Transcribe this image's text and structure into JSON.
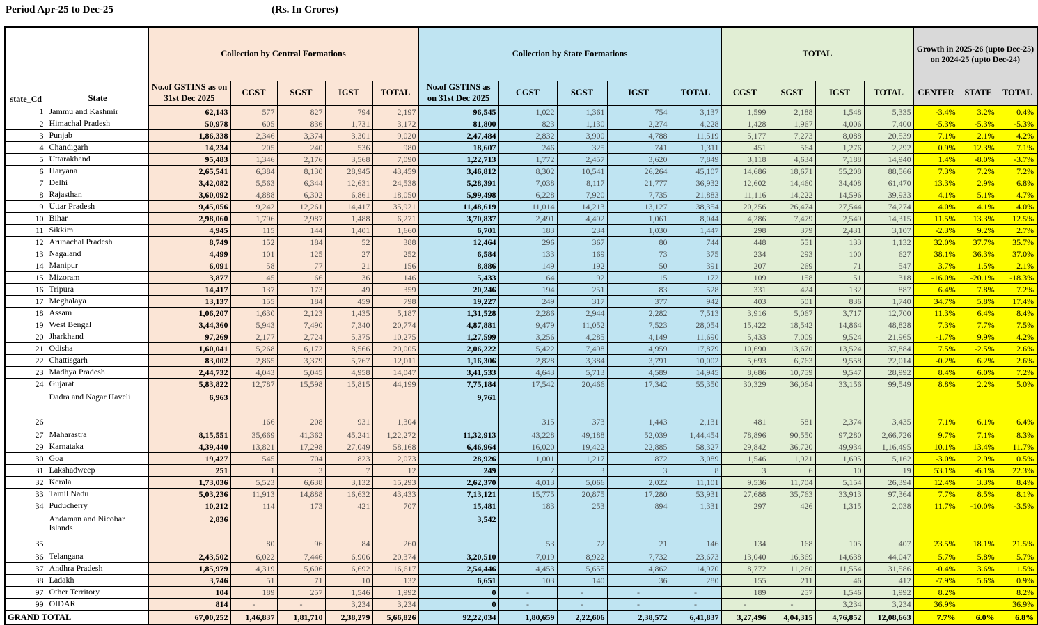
{
  "title": {
    "period": "Period Apr-25 to Dec-25",
    "unit": "(Rs. In Crores)"
  },
  "colors": {
    "central": "#fbe5d6",
    "state": "#bfe4f2",
    "total": "#e1eed4",
    "growth_header": "#d9d9d9",
    "growth_cell": "#ffff00"
  },
  "header": {
    "state_cd": "state_Cd",
    "state": "State",
    "central_group": "Collection by Central Formations",
    "state_group": "Collection by State Formations",
    "total_group": "TOTAL",
    "growth_group": "Growth in 2025-26 (upto Dec-25)\non 2024-25 (upto Dec-24)",
    "gstins": "No.of GSTINS as on 31st Dec 2025",
    "cgst": "CGST",
    "sgst": "SGST",
    "igst": "IGST",
    "total": "TOTAL",
    "center": "CENTER",
    "state_col": "STATE",
    "total_col": "TOTAL"
  },
  "rows": [
    {
      "cd": "1",
      "state": "Jammu and Kashmir",
      "central": [
        "62,143",
        "577",
        "827",
        "794",
        "2,197"
      ],
      "stateF": [
        "96,545",
        "1,022",
        "1,361",
        "754",
        "3,137"
      ],
      "total": [
        "1,599",
        "2,188",
        "1,548",
        "5,335"
      ],
      "growth": [
        "-3.4%",
        "3.2%",
        "0.4%"
      ]
    },
    {
      "cd": "2",
      "state": "Himachal Pradesh",
      "central": [
        "50,978",
        "605",
        "836",
        "1,731",
        "3,172"
      ],
      "stateF": [
        "81,800",
        "823",
        "1,130",
        "2,274",
        "4,228"
      ],
      "total": [
        "1,428",
        "1,967",
        "4,006",
        "7,400"
      ],
      "growth": [
        "-5.3%",
        "-5.3%",
        "-5.3%"
      ]
    },
    {
      "cd": "3",
      "state": "Punjab",
      "central": [
        "1,86,338",
        "2,346",
        "3,374",
        "3,301",
        "9,020"
      ],
      "stateF": [
        "2,47,484",
        "2,832",
        "3,900",
        "4,788",
        "11,519"
      ],
      "total": [
        "5,177",
        "7,273",
        "8,088",
        "20,539"
      ],
      "growth": [
        "7.1%",
        "2.1%",
        "4.2%"
      ]
    },
    {
      "cd": "4",
      "state": "Chandigarh",
      "central": [
        "14,234",
        "205",
        "240",
        "536",
        "980"
      ],
      "stateF": [
        "18,607",
        "246",
        "325",
        "741",
        "1,311"
      ],
      "total": [
        "451",
        "564",
        "1,276",
        "2,292"
      ],
      "growth": [
        "0.9%",
        "12.3%",
        "7.1%"
      ]
    },
    {
      "cd": "5",
      "state": "Uttarakhand",
      "central": [
        "95,483",
        "1,346",
        "2,176",
        "3,568",
        "7,090"
      ],
      "stateF": [
        "1,22,713",
        "1,772",
        "2,457",
        "3,620",
        "7,849"
      ],
      "total": [
        "3,118",
        "4,634",
        "7,188",
        "14,940"
      ],
      "growth": [
        "1.4%",
        "-8.0%",
        "-3.7%"
      ]
    },
    {
      "cd": "6",
      "state": "Haryana",
      "central": [
        "2,65,541",
        "6,384",
        "8,130",
        "28,945",
        "43,459"
      ],
      "stateF": [
        "3,46,812",
        "8,302",
        "10,541",
        "26,264",
        "45,107"
      ],
      "total": [
        "14,686",
        "18,671",
        "55,208",
        "88,566"
      ],
      "growth": [
        "7.3%",
        "7.2%",
        "7.2%"
      ]
    },
    {
      "cd": "7",
      "state": "Delhi",
      "central": [
        "3,42,082",
        "5,563",
        "6,344",
        "12,631",
        "24,538"
      ],
      "stateF": [
        "5,28,391",
        "7,038",
        "8,117",
        "21,777",
        "36,932"
      ],
      "total": [
        "12,602",
        "14,460",
        "34,408",
        "61,470"
      ],
      "growth": [
        "13.3%",
        "2.9%",
        "6.8%"
      ]
    },
    {
      "cd": "8",
      "state": "Rajasthan",
      "central": [
        "3,60,092",
        "4,888",
        "6,302",
        "6,861",
        "18,050"
      ],
      "stateF": [
        "5,99,498",
        "6,228",
        "7,920",
        "7,735",
        "21,883"
      ],
      "total": [
        "11,116",
        "14,222",
        "14,596",
        "39,933"
      ],
      "growth": [
        "4.1%",
        "5.1%",
        "4.7%"
      ]
    },
    {
      "cd": "9",
      "state": "Uttar Pradesh",
      "central": [
        "9,45,056",
        "9,242",
        "12,261",
        "14,417",
        "35,921"
      ],
      "stateF": [
        "11,48,619",
        "11,014",
        "14,213",
        "13,127",
        "38,354"
      ],
      "total": [
        "20,256",
        "26,474",
        "27,544",
        "74,274"
      ],
      "growth": [
        "4.0%",
        "4.1%",
        "4.0%"
      ]
    },
    {
      "cd": "10",
      "state": "Bihar",
      "central": [
        "2,98,060",
        "1,796",
        "2,987",
        "1,488",
        "6,271"
      ],
      "stateF": [
        "3,70,837",
        "2,491",
        "4,492",
        "1,061",
        "8,044"
      ],
      "total": [
        "4,286",
        "7,479",
        "2,549",
        "14,315"
      ],
      "growth": [
        "11.5%",
        "13.3%",
        "12.5%"
      ]
    },
    {
      "cd": "11",
      "state": "Sikkim",
      "central": [
        "4,945",
        "115",
        "144",
        "1,401",
        "1,660"
      ],
      "stateF": [
        "6,701",
        "183",
        "234",
        "1,030",
        "1,447"
      ],
      "total": [
        "298",
        "379",
        "2,431",
        "3,107"
      ],
      "growth": [
        "-2.3%",
        "9.2%",
        "2.7%"
      ]
    },
    {
      "cd": "12",
      "state": "Arunachal Pradesh",
      "central": [
        "8,749",
        "152",
        "184",
        "52",
        "388"
      ],
      "stateF": [
        "12,464",
        "296",
        "367",
        "80",
        "744"
      ],
      "total": [
        "448",
        "551",
        "133",
        "1,132"
      ],
      "growth": [
        "32.0%",
        "37.7%",
        "35.7%"
      ]
    },
    {
      "cd": "13",
      "state": "Nagaland",
      "central": [
        "4,499",
        "101",
        "125",
        "27",
        "252"
      ],
      "stateF": [
        "6,584",
        "133",
        "169",
        "73",
        "375"
      ],
      "total": [
        "234",
        "293",
        "100",
        "627"
      ],
      "growth": [
        "38.1%",
        "36.3%",
        "37.0%"
      ]
    },
    {
      "cd": "14",
      "state": "Manipur",
      "central": [
        "6,091",
        "58",
        "77",
        "21",
        "156"
      ],
      "stateF": [
        "8,886",
        "149",
        "192",
        "50",
        "391"
      ],
      "total": [
        "207",
        "269",
        "71",
        "547"
      ],
      "growth": [
        "3.7%",
        "1.5%",
        "2.1%"
      ]
    },
    {
      "cd": "15",
      "state": "Mizoram",
      "central": [
        "3,877",
        "45",
        "66",
        "36",
        "146"
      ],
      "stateF": [
        "5,433",
        "64",
        "92",
        "15",
        "172"
      ],
      "total": [
        "109",
        "158",
        "51",
        "318"
      ],
      "growth": [
        "-16.0%",
        "-20.1%",
        "-18.3%"
      ]
    },
    {
      "cd": "16",
      "state": "Tripura",
      "central": [
        "14,417",
        "137",
        "173",
        "49",
        "359"
      ],
      "stateF": [
        "20,246",
        "194",
        "251",
        "83",
        "528"
      ],
      "total": [
        "331",
        "424",
        "132",
        "887"
      ],
      "growth": [
        "6.4%",
        "7.8%",
        "7.2%"
      ]
    },
    {
      "cd": "17",
      "state": "Meghalaya",
      "central": [
        "13,137",
        "155",
        "184",
        "459",
        "798"
      ],
      "stateF": [
        "19,227",
        "249",
        "317",
        "377",
        "942"
      ],
      "total": [
        "403",
        "501",
        "836",
        "1,740"
      ],
      "growth": [
        "34.7%",
        "5.8%",
        "17.4%"
      ]
    },
    {
      "cd": "18",
      "state": "Assam",
      "central": [
        "1,06,207",
        "1,630",
        "2,123",
        "1,435",
        "5,187"
      ],
      "stateF": [
        "1,31,528",
        "2,286",
        "2,944",
        "2,282",
        "7,513"
      ],
      "total": [
        "3,916",
        "5,067",
        "3,717",
        "12,700"
      ],
      "growth": [
        "11.3%",
        "6.4%",
        "8.4%"
      ]
    },
    {
      "cd": "19",
      "state": "West Bengal",
      "central": [
        "3,44,360",
        "5,943",
        "7,490",
        "7,340",
        "20,774"
      ],
      "stateF": [
        "4,87,881",
        "9,479",
        "11,052",
        "7,523",
        "28,054"
      ],
      "total": [
        "15,422",
        "18,542",
        "14,864",
        "48,828"
      ],
      "growth": [
        "7.3%",
        "7.7%",
        "7.5%"
      ]
    },
    {
      "cd": "20",
      "state": "Jharkhand",
      "central": [
        "97,269",
        "2,177",
        "2,724",
        "5,375",
        "10,275"
      ],
      "stateF": [
        "1,27,599",
        "3,256",
        "4,285",
        "4,149",
        "11,690"
      ],
      "total": [
        "5,433",
        "7,009",
        "9,524",
        "21,965"
      ],
      "growth": [
        "-1.7%",
        "9.9%",
        "4.2%"
      ]
    },
    {
      "cd": "21",
      "state": "Odisha",
      "central": [
        "1,60,041",
        "5,268",
        "6,172",
        "8,566",
        "20,005"
      ],
      "stateF": [
        "2,06,222",
        "5,422",
        "7,498",
        "4,959",
        "17,879"
      ],
      "total": [
        "10,690",
        "13,670",
        "13,524",
        "37,884"
      ],
      "growth": [
        "7.5%",
        "-2.5%",
        "2.6%"
      ]
    },
    {
      "cd": "22",
      "state": "Chattisgarh",
      "central": [
        "83,002",
        "2,865",
        "3,379",
        "5,767",
        "12,011"
      ],
      "stateF": [
        "1,16,306",
        "2,828",
        "3,384",
        "3,791",
        "10,002"
      ],
      "total": [
        "5,693",
        "6,763",
        "9,558",
        "22,014"
      ],
      "growth": [
        "-0.2%",
        "6.2%",
        "2.6%"
      ]
    },
    {
      "cd": "23",
      "state": "Madhya Pradesh",
      "central": [
        "2,44,732",
        "4,043",
        "5,045",
        "4,958",
        "14,047"
      ],
      "stateF": [
        "3,41,533",
        "4,643",
        "5,713",
        "4,589",
        "14,945"
      ],
      "total": [
        "8,686",
        "10,759",
        "9,547",
        "28,992"
      ],
      "growth": [
        "8.4%",
        "6.0%",
        "7.2%"
      ]
    },
    {
      "cd": "24",
      "state": "Gujarat",
      "central": [
        "5,83,822",
        "12,787",
        "15,598",
        "15,815",
        "44,199"
      ],
      "stateF": [
        "7,75,184",
        "17,542",
        "20,466",
        "17,342",
        "55,350"
      ],
      "total": [
        "30,329",
        "36,064",
        "33,156",
        "99,549"
      ],
      "growth": [
        "8.8%",
        "2.2%",
        "5.0%"
      ]
    },
    {
      "cd": "26",
      "state": "Dadra and Nagar Haveli",
      "tall": true,
      "central": [
        "6,963",
        "166",
        "208",
        "931",
        "1,304"
      ],
      "stateF": [
        "9,761",
        "315",
        "373",
        "1,443",
        "2,131"
      ],
      "total": [
        "481",
        "581",
        "2,374",
        "3,435"
      ],
      "growth": [
        "7.1%",
        "6.1%",
        "6.4%"
      ]
    },
    {
      "cd": "27",
      "state": "Maharastra",
      "central": [
        "8,15,551",
        "35,669",
        "41,362",
        "45,241",
        "1,22,272"
      ],
      "stateF": [
        "11,32,913",
        "43,228",
        "49,188",
        "52,039",
        "1,44,454"
      ],
      "total": [
        "78,896",
        "90,550",
        "97,280",
        "2,66,726"
      ],
      "growth": [
        "9.7%",
        "7.1%",
        "8.3%"
      ]
    },
    {
      "cd": "29",
      "state": "Karnataka",
      "central": [
        "4,39,440",
        "13,821",
        "17,298",
        "27,049",
        "58,168"
      ],
      "stateF": [
        "6,46,964",
        "16,020",
        "19,422",
        "22,885",
        "58,327"
      ],
      "total": [
        "29,842",
        "36,720",
        "49,934",
        "1,16,495"
      ],
      "growth": [
        "10.1%",
        "13.4%",
        "11.7%"
      ]
    },
    {
      "cd": "30",
      "state": "Goa",
      "central": [
        "19,427",
        "545",
        "704",
        "823",
        "2,073"
      ],
      "stateF": [
        "28,926",
        "1,001",
        "1,217",
        "872",
        "3,089"
      ],
      "total": [
        "1,546",
        "1,921",
        "1,695",
        "5,162"
      ],
      "growth": [
        "-3.0%",
        "2.9%",
        "0.5%"
      ]
    },
    {
      "cd": "31",
      "state": "Lakshadweep",
      "central": [
        "251",
        "1",
        "3",
        "7",
        "12"
      ],
      "stateF": [
        "249",
        "2",
        "3",
        "3",
        "8"
      ],
      "total": [
        "3",
        "6",
        "10",
        "19"
      ],
      "growth": [
        "53.1%",
        "-6.1%",
        "22.3%"
      ]
    },
    {
      "cd": "32",
      "state": "Kerala",
      "central": [
        "1,73,036",
        "5,523",
        "6,638",
        "3,132",
        "15,293"
      ],
      "stateF": [
        "2,62,370",
        "4,013",
        "5,066",
        "2,022",
        "11,101"
      ],
      "total": [
        "9,536",
        "11,704",
        "5,154",
        "26,394"
      ],
      "growth": [
        "12.4%",
        "3.3%",
        "8.4%"
      ]
    },
    {
      "cd": "33",
      "state": "Tamil Nadu",
      "central": [
        "5,03,236",
        "11,913",
        "14,888",
        "16,632",
        "43,433"
      ],
      "stateF": [
        "7,13,121",
        "15,775",
        "20,875",
        "17,280",
        "53,931"
      ],
      "total": [
        "27,688",
        "35,763",
        "33,913",
        "97,364"
      ],
      "growth": [
        "7.7%",
        "8.5%",
        "8.1%"
      ]
    },
    {
      "cd": "34",
      "state": "Puducherry",
      "central": [
        "10,212",
        "114",
        "173",
        "421",
        "707"
      ],
      "stateF": [
        "15,481",
        "183",
        "253",
        "894",
        "1,331"
      ],
      "total": [
        "297",
        "426",
        "1,315",
        "2,038"
      ],
      "growth": [
        "11.7%",
        "-10.0%",
        "-3.5%"
      ]
    },
    {
      "cd": "35",
      "state": "Andaman and Nicobar Islands",
      "tall": true,
      "central": [
        "2,836",
        "80",
        "96",
        "84",
        "260"
      ],
      "stateF": [
        "3,542",
        "53",
        "72",
        "21",
        "146"
      ],
      "total": [
        "134",
        "168",
        "105",
        "407"
      ],
      "growth": [
        "23.5%",
        "18.1%",
        "21.5%"
      ]
    },
    {
      "cd": "36",
      "state": "Telangana",
      "central": [
        "2,43,502",
        "6,022",
        "7,446",
        "6,906",
        "20,374"
      ],
      "stateF": [
        "3,20,510",
        "7,019",
        "8,922",
        "7,732",
        "23,673"
      ],
      "total": [
        "13,040",
        "16,369",
        "14,638",
        "44,047"
      ],
      "growth": [
        "5.7%",
        "5.8%",
        "5.7%"
      ]
    },
    {
      "cd": "37",
      "state": "Andhra Pradesh",
      "central": [
        "1,85,979",
        "4,319",
        "5,606",
        "6,692",
        "16,617"
      ],
      "stateF": [
        "2,54,446",
        "4,453",
        "5,655",
        "4,862",
        "14,970"
      ],
      "total": [
        "8,772",
        "11,260",
        "11,554",
        "31,586"
      ],
      "growth": [
        "-0.4%",
        "3.6%",
        "1.5%"
      ]
    },
    {
      "cd": "38",
      "state": "Ladakh",
      "central": [
        "3,746",
        "51",
        "71",
        "10",
        "132"
      ],
      "stateF": [
        "6,651",
        "103",
        "140",
        "36",
        "280"
      ],
      "total": [
        "155",
        "211",
        "46",
        "412"
      ],
      "growth": [
        "-7.9%",
        "5.6%",
        "0.9%"
      ]
    },
    {
      "cd": "97",
      "state": "Other Territory",
      "central": [
        "104",
        "189",
        "257",
        "1,546",
        "1,992"
      ],
      "stateF": [
        "0",
        "-",
        "-",
        "-",
        "-"
      ],
      "total": [
        "189",
        "257",
        "1,546",
        "1,992"
      ],
      "growth": [
        "8.2%",
        "",
        "8.2%"
      ]
    },
    {
      "cd": "99",
      "state": "OIDAR",
      "central": [
        "814",
        "-",
        "-",
        "3,234",
        "3,234"
      ],
      "stateF": [
        "0",
        "-",
        "-",
        "-",
        "-"
      ],
      "total": [
        "-",
        "-",
        "3,234",
        "3,234"
      ],
      "growth": [
        "36.9%",
        "",
        "36.9%"
      ]
    }
  ],
  "grand_total": {
    "label": "GRAND TOTAL",
    "central": [
      "67,00,252",
      "1,46,837",
      "1,81,710",
      "2,38,279",
      "5,66,826"
    ],
    "stateF": [
      "92,22,034",
      "1,80,659",
      "2,22,606",
      "2,38,572",
      "6,41,837"
    ],
    "total": [
      "3,27,496",
      "4,04,315",
      "4,76,852",
      "12,08,663"
    ],
    "growth": [
      "7.7%",
      "6.0%",
      "6.8%"
    ]
  }
}
